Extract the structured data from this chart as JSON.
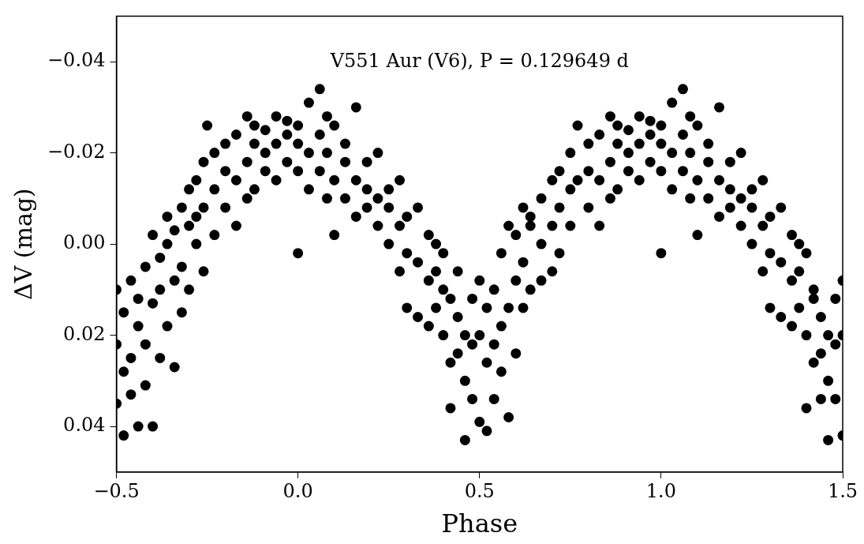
{
  "chart_data": {
    "type": "scatter",
    "title": "V551 Aur (V6), P = 0.129649 d",
    "xlabel": "Phase",
    "ylabel": "ΔV (mag)",
    "xlim": [
      -0.5,
      1.5
    ],
    "ylim": [
      0.05,
      -0.05
    ],
    "xticks": [
      {
        "value": -0.5,
        "label": "−0.5"
      },
      {
        "value": 0,
        "label": "0.0"
      },
      {
        "value": 0.5,
        "label": "0.5"
      },
      {
        "value": 1,
        "label": "1.0"
      },
      {
        "value": 1.5,
        "label": "1.5"
      }
    ],
    "yticks": [
      {
        "value": -0.04,
        "label": "−0.04"
      },
      {
        "value": -0.02,
        "label": "−0.02"
      },
      {
        "value": 0,
        "label": "0.00"
      },
      {
        "value": 0.02,
        "label": "0.02"
      },
      {
        "value": 0.04,
        "label": "0.04"
      }
    ],
    "grid": false,
    "legend": false,
    "marker": "circle",
    "series": [
      {
        "color": "#000000",
        "x": [
          -0.5,
          -0.5,
          -0.5,
          -0.48,
          -0.48,
          -0.48,
          -0.46,
          -0.46,
          -0.46,
          -0.44,
          -0.44,
          -0.44,
          -0.42,
          -0.42,
          -0.42,
          -0.4,
          -0.4,
          -0.4,
          -0.38,
          -0.38,
          -0.38,
          -0.36,
          -0.36,
          -0.36,
          -0.34,
          -0.34,
          -0.34,
          -0.32,
          -0.32,
          -0.32,
          -0.3,
          -0.3,
          -0.3,
          -0.28,
          -0.28,
          -0.28,
          -0.26,
          -0.26,
          -0.26,
          -0.25,
          -0.23,
          -0.23,
          -0.23,
          -0.2,
          -0.2,
          -0.2,
          -0.17,
          -0.17,
          -0.17,
          -0.14,
          -0.14,
          -0.14,
          -0.12,
          -0.12,
          -0.12,
          -0.09,
          -0.09,
          -0.09,
          -0.06,
          -0.06,
          -0.06,
          -0.03,
          -0.03,
          -0.03,
          0,
          0,
          0,
          0,
          0.03,
          0.03,
          0.03,
          0.06,
          0.06,
          0.06,
          0.08,
          0.08,
          0.08,
          0.1,
          0.1,
          0.1,
          0.13,
          0.13,
          0.13,
          0.16,
          0.16,
          0.16,
          0.19,
          0.19,
          0.19,
          0.22,
          0.22,
          0.22,
          0.25,
          0.25,
          0.25,
          0.28,
          0.28,
          0.28,
          0.3,
          0.3,
          0.3,
          0.33,
          0.33,
          0.33,
          0.36,
          0.36,
          0.36,
          0.38,
          0.38,
          0.38,
          0.4,
          0.4,
          0.4,
          0.42,
          0.42,
          0.42,
          0.44,
          0.44,
          0.44,
          0.46,
          0.46,
          0.46,
          0.48,
          0.48,
          0.48,
          0.5,
          0.5,
          0.5,
          0.52,
          0.52,
          0.52,
          0.54,
          0.54,
          0.54,
          0.56,
          0.56,
          0.56,
          0.58,
          0.58,
          0.58,
          0.6,
          0.6,
          0.6,
          0.62,
          0.62,
          0.62,
          0.64,
          0.64,
          0.64,
          0.67,
          0.67,
          0.67,
          0.7,
          0.7,
          0.7,
          0.72,
          0.72,
          0.72,
          0.75,
          0.75,
          0.75,
          0.77,
          0.77,
          0.8,
          0.8,
          0.8,
          0.83,
          0.83,
          0.83,
          0.86,
          0.86,
          0.86,
          0.88,
          0.88,
          0.88,
          0.91,
          0.91,
          0.91,
          0.94,
          0.94,
          0.94,
          0.97,
          0.97,
          0.97,
          1,
          1,
          1,
          1,
          1.03,
          1.03,
          1.03,
          1.06,
          1.06,
          1.06,
          1.08,
          1.08,
          1.08,
          1.1,
          1.1,
          1.1,
          1.13,
          1.13,
          1.13,
          1.16,
          1.16,
          1.16,
          1.19,
          1.19,
          1.19,
          1.22,
          1.22,
          1.22,
          1.25,
          1.25,
          1.25,
          1.28,
          1.28,
          1.28,
          1.3,
          1.3,
          1.3,
          1.33,
          1.33,
          1.33,
          1.36,
          1.36,
          1.36,
          1.38,
          1.38,
          1.38,
          1.4,
          1.4,
          1.4,
          1.42,
          1.42,
          1.42,
          1.44,
          1.44,
          1.44,
          1.46,
          1.46,
          1.46,
          1.48,
          1.48,
          1.48,
          1.5,
          1.5,
          1.5
        ],
        "values": [
          0.022,
          0.035,
          0.01,
          0.042,
          0.015,
          0.028,
          0.008,
          0.025,
          0.033,
          0.018,
          0.04,
          0.012,
          0.005,
          0.022,
          0.031,
          0.04,
          0.013,
          -0.002,
          0.01,
          0.025,
          0.003,
          0,
          0.018,
          -0.006,
          0.008,
          0.027,
          -0.003,
          -0.008,
          0.005,
          0.015,
          -0.004,
          0.01,
          -0.012,
          -0.014,
          0,
          -0.006,
          -0.018,
          -0.008,
          0.006,
          -0.026,
          -0.02,
          -0.012,
          -0.002,
          -0.016,
          -0.022,
          -0.008,
          -0.024,
          -0.014,
          -0.004,
          -0.028,
          -0.018,
          -0.01,
          -0.022,
          -0.012,
          -0.026,
          -0.02,
          -0.025,
          -0.016,
          -0.028,
          -0.022,
          -0.014,
          -0.024,
          -0.018,
          -0.027,
          -0.022,
          -0.016,
          -0.026,
          0.002,
          -0.031,
          -0.02,
          -0.012,
          -0.034,
          -0.024,
          -0.016,
          -0.028,
          -0.01,
          -0.02,
          -0.026,
          -0.014,
          -0.002,
          -0.022,
          -0.01,
          -0.018,
          -0.03,
          -0.014,
          -0.006,
          -0.018,
          -0.008,
          -0.012,
          -0.02,
          -0.004,
          -0.01,
          -0.012,
          0,
          -0.008,
          -0.014,
          -0.004,
          0.006,
          -0.006,
          0.002,
          0.014,
          -0.008,
          0.004,
          0.016,
          -0.002,
          0.008,
          0.018,
          0.006,
          0.014,
          0,
          0.002,
          0.02,
          0.01,
          0.012,
          0.026,
          0.036,
          0.016,
          0.024,
          0.006,
          0.043,
          0.02,
          0.03,
          0.012,
          0.022,
          0.034,
          0.02,
          0.039,
          0.008,
          0.014,
          0.026,
          0.041,
          0.01,
          0.022,
          0.034,
          0.002,
          0.018,
          0.028,
          -0.004,
          0.014,
          0.038,
          0.008,
          -0.002,
          0.024,
          -0.008,
          0.004,
          0.014,
          -0.004,
          0.01,
          -0.006,
          -0.01,
          0,
          0.008,
          -0.014,
          -0.004,
          0.006,
          -0.008,
          -0.016,
          0.002,
          -0.02,
          -0.012,
          -0.004,
          -0.026,
          -0.014,
          -0.016,
          -0.022,
          -0.008,
          -0.024,
          -0.014,
          -0.004,
          -0.028,
          -0.018,
          -0.01,
          -0.022,
          -0.012,
          -0.026,
          -0.02,
          -0.025,
          -0.016,
          -0.028,
          -0.022,
          -0.014,
          -0.024,
          -0.018,
          -0.027,
          -0.022,
          -0.016,
          -0.026,
          0.002,
          -0.031,
          -0.02,
          -0.012,
          -0.034,
          -0.024,
          -0.016,
          -0.028,
          -0.01,
          -0.02,
          -0.026,
          -0.014,
          -0.002,
          -0.022,
          -0.01,
          -0.018,
          -0.03,
          -0.014,
          -0.006,
          -0.018,
          -0.008,
          -0.012,
          -0.02,
          -0.004,
          -0.01,
          -0.012,
          0,
          -0.008,
          -0.014,
          -0.004,
          0.006,
          -0.006,
          0.002,
          0.014,
          -0.008,
          0.004,
          0.016,
          -0.002,
          0.008,
          0.018,
          0.006,
          0.014,
          0,
          0.002,
          0.02,
          0.036,
          0.012,
          0.026,
          0.01,
          0.016,
          0.024,
          0.034,
          0.043,
          0.02,
          0.03,
          0.012,
          0.022,
          0.034,
          0.02,
          0.042,
          0.008
        ]
      }
    ]
  }
}
